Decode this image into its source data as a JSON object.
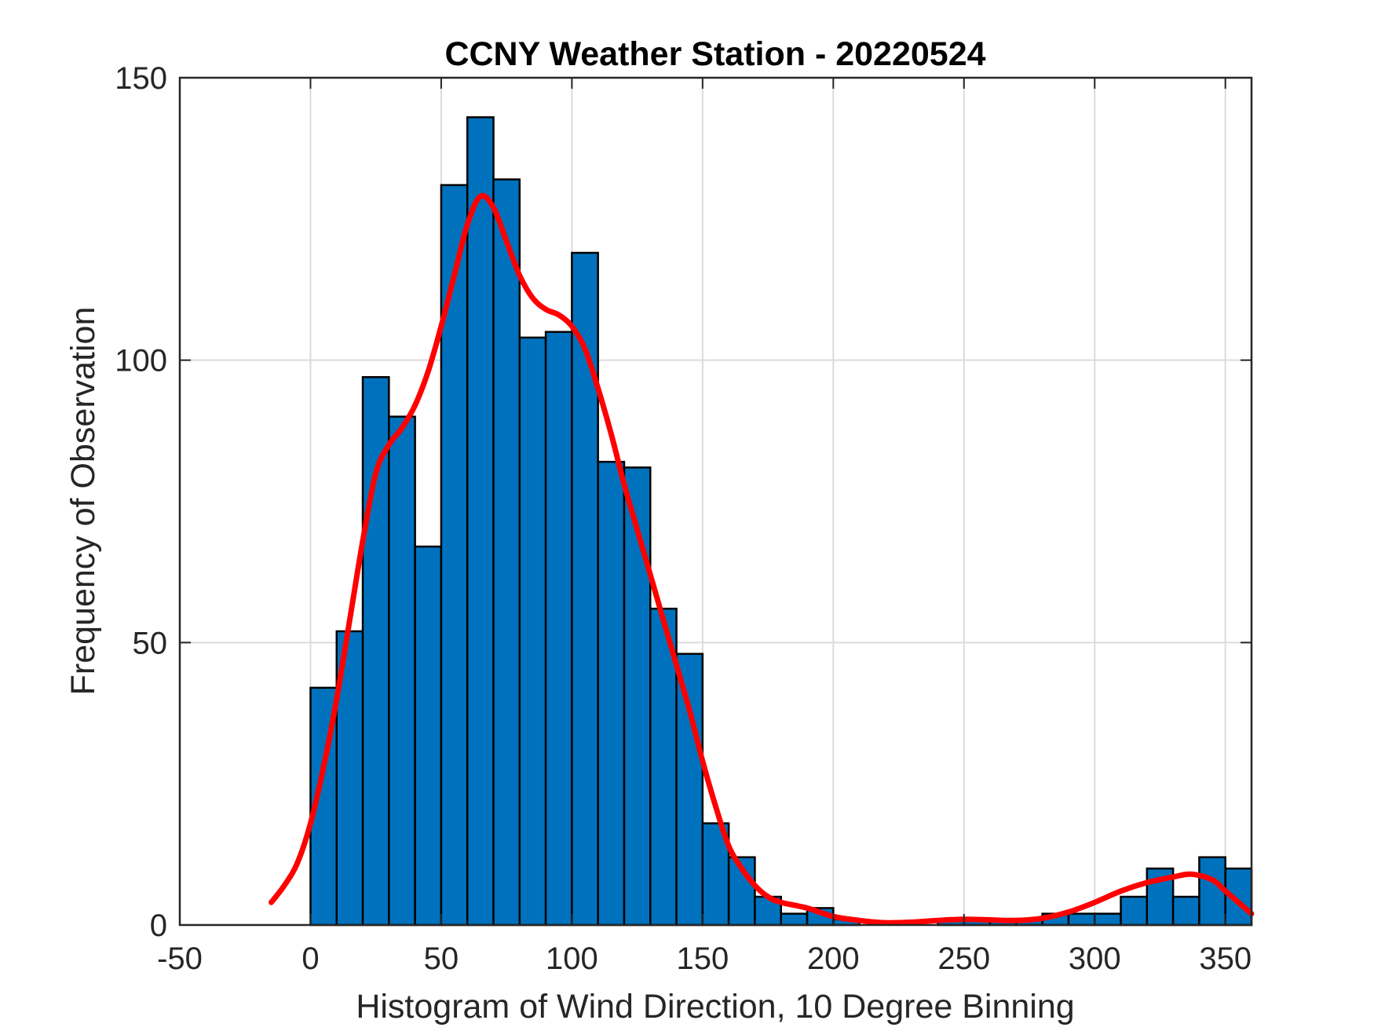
{
  "chart_data": {
    "type": "bar",
    "title": "CCNY Weather Station - 20220524",
    "xlabel": "Histogram of Wind Direction, 10 Degree Binning",
    "ylabel": "Frequency of Observation",
    "xlim": [
      -50,
      360
    ],
    "ylim": [
      0,
      150
    ],
    "xticks": [
      -50,
      0,
      50,
      100,
      150,
      200,
      250,
      300,
      350
    ],
    "yticks": [
      0,
      50,
      100,
      150
    ],
    "grid": true,
    "bin_width": 10,
    "bins": [
      {
        "start": 0,
        "count": 42
      },
      {
        "start": 10,
        "count": 52
      },
      {
        "start": 20,
        "count": 97
      },
      {
        "start": 30,
        "count": 90
      },
      {
        "start": 40,
        "count": 67
      },
      {
        "start": 50,
        "count": 131
      },
      {
        "start": 60,
        "count": 143
      },
      {
        "start": 70,
        "count": 132
      },
      {
        "start": 80,
        "count": 104
      },
      {
        "start": 90,
        "count": 105
      },
      {
        "start": 100,
        "count": 119
      },
      {
        "start": 110,
        "count": 82
      },
      {
        "start": 120,
        "count": 81
      },
      {
        "start": 130,
        "count": 56
      },
      {
        "start": 140,
        "count": 48
      },
      {
        "start": 150,
        "count": 18
      },
      {
        "start": 160,
        "count": 12
      },
      {
        "start": 170,
        "count": 5
      },
      {
        "start": 180,
        "count": 2
      },
      {
        "start": 190,
        "count": 3
      },
      {
        "start": 200,
        "count": 1
      },
      {
        "start": 210,
        "count": 0
      },
      {
        "start": 220,
        "count": 0
      },
      {
        "start": 230,
        "count": 0
      },
      {
        "start": 240,
        "count": 1
      },
      {
        "start": 250,
        "count": 1
      },
      {
        "start": 260,
        "count": 1
      },
      {
        "start": 270,
        "count": 1
      },
      {
        "start": 280,
        "count": 2
      },
      {
        "start": 290,
        "count": 2
      },
      {
        "start": 300,
        "count": 2
      },
      {
        "start": 310,
        "count": 5
      },
      {
        "start": 320,
        "count": 10
      },
      {
        "start": 330,
        "count": 5
      },
      {
        "start": 340,
        "count": 12
      },
      {
        "start": 350,
        "count": 10
      }
    ],
    "fit_curve": {
      "color": "#ff0000",
      "points": [
        [
          -15,
          4
        ],
        [
          -10,
          7
        ],
        [
          -5,
          11
        ],
        [
          0,
          18
        ],
        [
          5,
          28
        ],
        [
          10,
          40
        ],
        [
          15,
          54
        ],
        [
          20,
          68
        ],
        [
          25,
          80
        ],
        [
          30,
          85
        ],
        [
          35,
          88
        ],
        [
          40,
          92
        ],
        [
          45,
          98
        ],
        [
          50,
          106
        ],
        [
          55,
          115
        ],
        [
          60,
          124
        ],
        [
          65,
          129
        ],
        [
          70,
          127
        ],
        [
          75,
          121
        ],
        [
          80,
          115
        ],
        [
          85,
          111
        ],
        [
          90,
          109
        ],
        [
          95,
          108
        ],
        [
          100,
          106
        ],
        [
          105,
          102
        ],
        [
          110,
          95
        ],
        [
          115,
          87
        ],
        [
          120,
          78
        ],
        [
          125,
          70
        ],
        [
          130,
          62
        ],
        [
          135,
          54
        ],
        [
          140,
          46
        ],
        [
          145,
          38
        ],
        [
          150,
          29
        ],
        [
          155,
          21
        ],
        [
          160,
          14
        ],
        [
          165,
          10
        ],
        [
          170,
          7
        ],
        [
          175,
          5
        ],
        [
          180,
          4
        ],
        [
          190,
          3
        ],
        [
          200,
          1.5
        ],
        [
          210,
          0.8
        ],
        [
          220,
          0.4
        ],
        [
          230,
          0.5
        ],
        [
          240,
          0.8
        ],
        [
          250,
          1
        ],
        [
          260,
          0.9
        ],
        [
          270,
          0.8
        ],
        [
          280,
          1.2
        ],
        [
          290,
          2.3
        ],
        [
          300,
          4
        ],
        [
          310,
          6
        ],
        [
          320,
          7.5
        ],
        [
          330,
          8.5
        ],
        [
          337,
          9
        ],
        [
          345,
          8
        ],
        [
          350,
          6
        ],
        [
          355,
          4
        ],
        [
          360,
          2
        ]
      ]
    },
    "colors": {
      "bar_fill": "#0072bd",
      "bar_edge": "#000000",
      "curve": "#ff0000",
      "grid": "#dbdbdb",
      "axis": "#262626"
    }
  }
}
